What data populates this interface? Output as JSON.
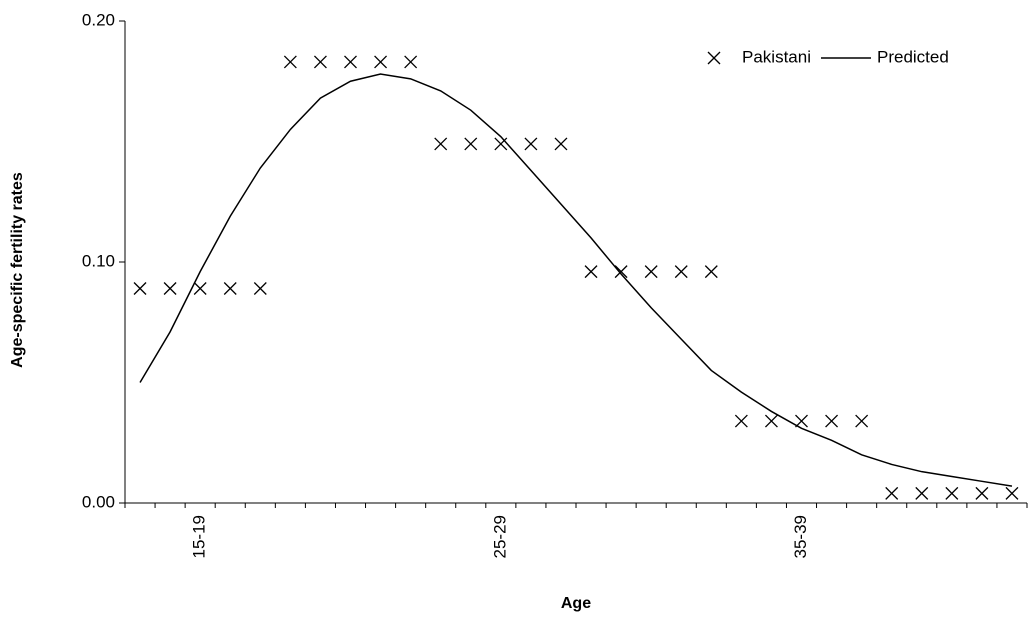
{
  "chart_data": {
    "type": "line",
    "x_label": "Age",
    "y_label": "Age-specific fertility rates",
    "categories": [
      null,
      null,
      "15-19",
      null,
      null,
      null,
      null,
      null,
      null,
      null,
      null,
      null,
      "25-29",
      null,
      null,
      null,
      null,
      null,
      null,
      null,
      null,
      null,
      "35-39",
      null,
      null,
      null,
      null,
      null,
      null,
      null
    ],
    "series": [
      {
        "name": "Pakistani",
        "color": "#000000",
        "marker": "x",
        "values": [
          0.089,
          0.089,
          0.089,
          0.089,
          0.089,
          0.183,
          0.183,
          0.183,
          0.183,
          0.183,
          0.149,
          0.149,
          0.149,
          0.149,
          0.149,
          0.096,
          0.096,
          0.096,
          0.096,
          0.096,
          0.034,
          0.034,
          0.034,
          0.034,
          0.034,
          0.004,
          0.004,
          0.004,
          0.004,
          0.004
        ]
      },
      {
        "name": "Predicted",
        "color": "#000000",
        "marker": "none",
        "values": [
          0.05,
          0.071,
          0.096,
          0.119,
          0.139,
          0.155,
          0.168,
          0.175,
          0.178,
          0.176,
          0.171,
          0.163,
          0.152,
          0.138,
          0.124,
          0.11,
          0.095,
          0.081,
          0.068,
          0.055,
          0.046,
          0.038,
          0.031,
          0.026,
          0.02,
          0.016,
          0.013,
          0.011,
          0.009,
          0.007
        ]
      }
    ],
    "ylim": [
      0,
      0.2
    ],
    "yticks": [
      {
        "value": 0,
        "label": "0.00"
      },
      {
        "value": 0.1,
        "label": "0.10"
      },
      {
        "value": 0.2,
        "label": "0.20"
      }
    ],
    "legend": "top-right",
    "grid": false
  }
}
